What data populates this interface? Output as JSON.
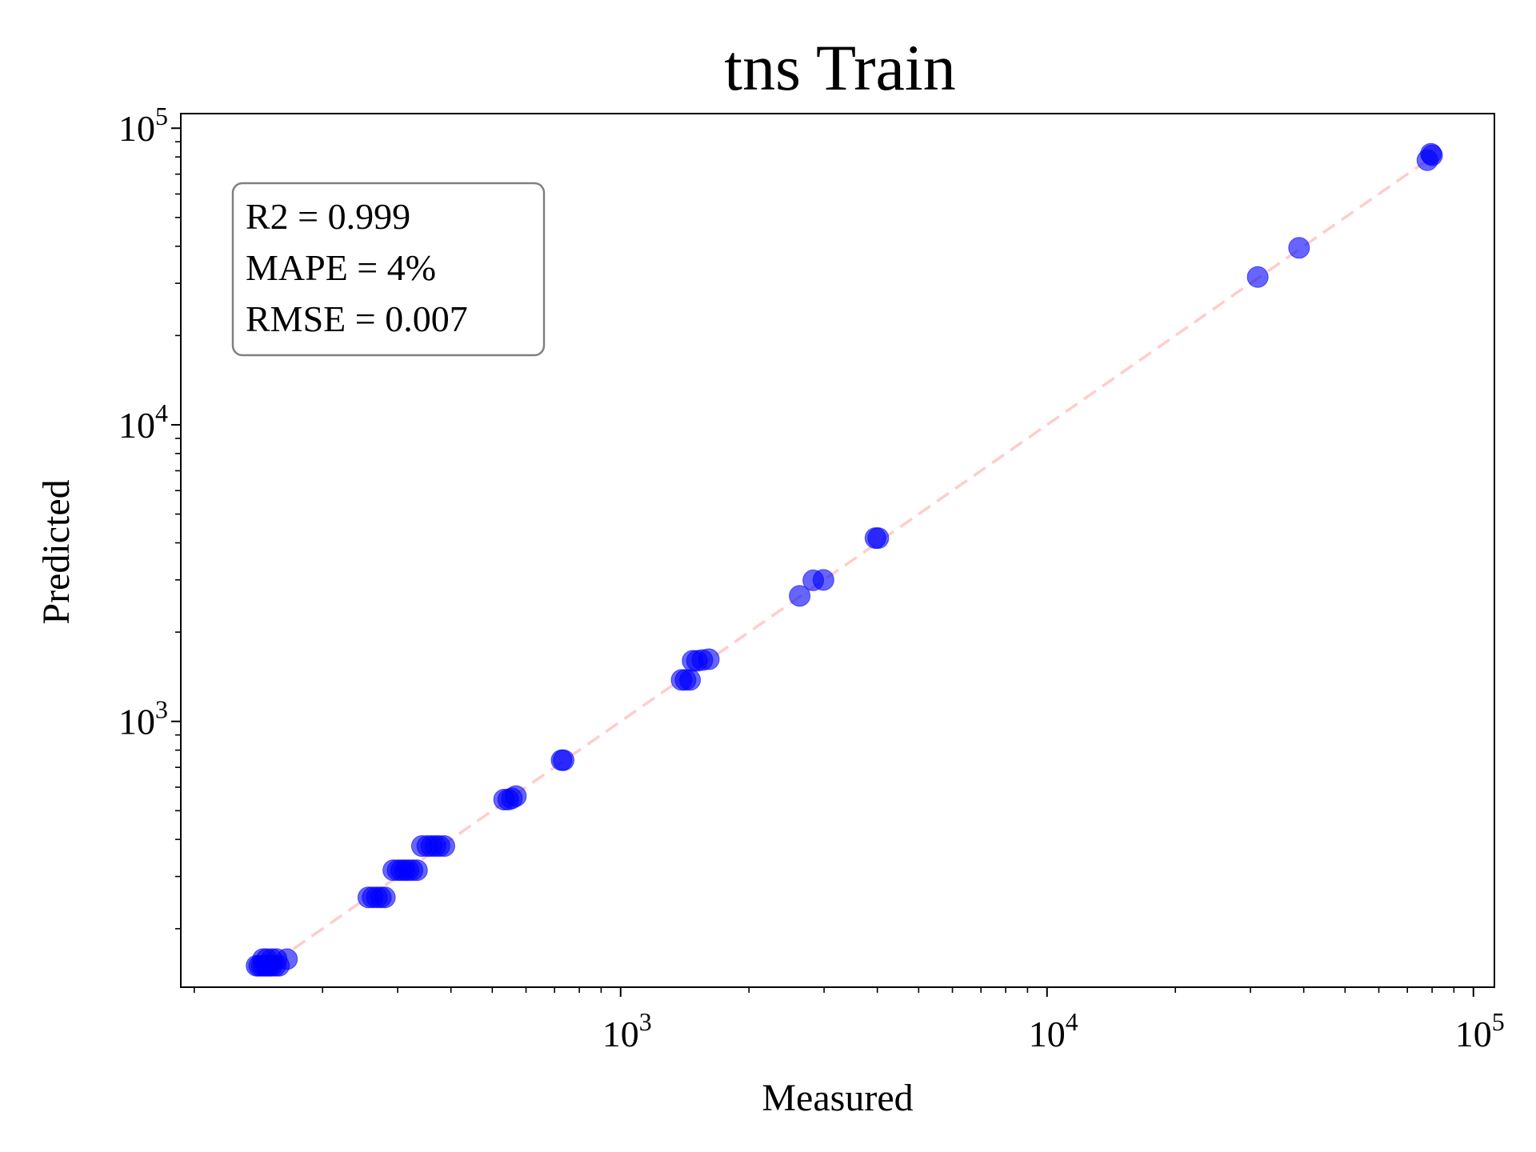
{
  "chart_data": {
    "type": "scatter",
    "title": "tns Train",
    "xlabel": "Measured",
    "ylabel": "Predicted",
    "xscale": "log",
    "yscale": "log",
    "xlim": [
      93,
      112000
    ],
    "ylim": [
      127,
      112000
    ],
    "x_ticks": [
      {
        "base": "10",
        "exp": "3",
        "value": 1000
      },
      {
        "base": "10",
        "exp": "4",
        "value": 10000
      },
      {
        "base": "10",
        "exp": "5",
        "value": 100000
      }
    ],
    "y_ticks": [
      {
        "base": "10",
        "exp": "3",
        "value": 1000
      },
      {
        "base": "10",
        "exp": "4",
        "value": 10000
      },
      {
        "base": "10",
        "exp": "5",
        "value": 100000
      }
    ],
    "grid": false,
    "annotation": {
      "lines": [
        "R2 = 0.999",
        "MAPE = 4%",
        "RMSE = 0.007"
      ],
      "placement": "top-left"
    },
    "reference_line": {
      "type": "y=x",
      "style": "dashed",
      "color": "#ffcccc"
    },
    "marker_color": "#0000ff",
    "series": [
      {
        "x": [
          140,
          142,
          144,
          146,
          148,
          150,
          152,
          155,
          158,
          165,
          145,
          148,
          152,
          156,
          256,
          262,
          268,
          274,
          280,
          293,
          300,
          306,
          312,
          318,
          325,
          333,
          342,
          352,
          360,
          368,
          376,
          386,
          533,
          545,
          556,
          568,
          727,
          735,
          1390,
          1420,
          1455,
          1475,
          1510,
          1555,
          1610,
          2630,
          2830,
          2990,
          3960,
          4020,
          31200,
          39000,
          78000,
          79500,
          80000
        ],
        "y": [
          150,
          150,
          150,
          150,
          150,
          150,
          150,
          150,
          150,
          158,
          158,
          158,
          158,
          158,
          255,
          255,
          255,
          255,
          255,
          315,
          315,
          315,
          315,
          315,
          315,
          315,
          380,
          380,
          380,
          380,
          380,
          380,
          545,
          545,
          550,
          560,
          740,
          740,
          1380,
          1380,
          1380,
          1600,
          1600,
          1610,
          1620,
          2650,
          2990,
          3000,
          4150,
          4150,
          31500,
          39500,
          78000,
          82000,
          81000
        ]
      }
    ]
  }
}
